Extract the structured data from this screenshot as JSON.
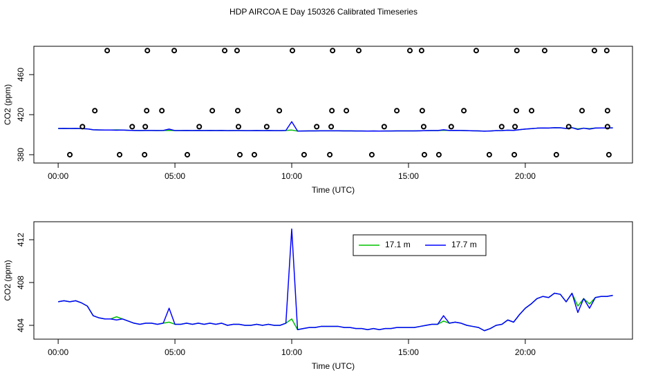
{
  "title": "HDP AIRCOA E  Day 150326  Calibrated Timeseries",
  "chart_data": [
    {
      "type": "line",
      "xlabel": "Time (UTC)",
      "ylabel": "CO2 (ppm)",
      "xlim": [
        -1.04,
        24.59
      ],
      "xticks": [
        {
          "value": 0,
          "label": "00:00"
        },
        {
          "value": 5,
          "label": "05:00"
        },
        {
          "value": 10,
          "label": "10:00"
        },
        {
          "value": 15,
          "label": "15:00"
        },
        {
          "value": 20,
          "label": "20:00"
        }
      ],
      "ylim": [
        371.7,
        488.3
      ],
      "yticks": [
        380,
        420,
        460
      ],
      "series": [
        {
          "color": "#00c000",
          "style": "line",
          "x": [
            0,
            0.25,
            0.5,
            0.75,
            1,
            1.25,
            1.5,
            1.75,
            2,
            2.25,
            2.5,
            2.75,
            3,
            3.25,
            3.5,
            3.75,
            4,
            4.25,
            4.5,
            4.75,
            5,
            5.25,
            5.5,
            5.75,
            6,
            6.25,
            6.5,
            6.75,
            7,
            7.25,
            7.5,
            7.75,
            8,
            8.25,
            8.5,
            8.75,
            9,
            9.25,
            9.5,
            9.75,
            10,
            10.25,
            10.5,
            10.75,
            11,
            11.25,
            11.5,
            11.75,
            12,
            12.25,
            12.5,
            12.75,
            13,
            13.25,
            13.5,
            13.75,
            14,
            14.25,
            14.5,
            14.75,
            15,
            15.25,
            15.5,
            15.75,
            16,
            16.25,
            16.5,
            16.75,
            17,
            17.25,
            17.5,
            17.75,
            18,
            18.25,
            18.5,
            18.75,
            19,
            19.25,
            19.5,
            19.75,
            20,
            20.25,
            20.5,
            20.75,
            21,
            21.25,
            21.5,
            21.75,
            22,
            22.25,
            22.5,
            22.75,
            23,
            23.25,
            23.5,
            23.75
          ],
          "values": [
            406.2,
            406.3,
            406.2,
            406.3,
            406.1,
            405.8,
            404.9,
            404.7,
            404.6,
            404.6,
            404.8,
            404.6,
            404.4,
            404.2,
            404.1,
            404.2,
            404.2,
            404.1,
            404.2,
            404.3,
            404.1,
            404.1,
            404.2,
            404.1,
            404.2,
            404.1,
            404.2,
            404.1,
            404.2,
            404.0,
            404.1,
            404.1,
            404.0,
            404.0,
            404.1,
            404.0,
            404.1,
            404.0,
            404.0,
            404.2,
            404.6,
            403.6,
            403.7,
            403.8,
            403.8,
            403.9,
            403.9,
            403.9,
            403.9,
            403.8,
            403.8,
            403.7,
            403.7,
            403.6,
            403.7,
            403.6,
            403.7,
            403.7,
            403.8,
            403.8,
            403.8,
            403.8,
            403.9,
            404.0,
            404.1,
            404.1,
            404.4,
            404.2,
            404.3,
            404.2,
            404.0,
            403.9,
            403.8,
            403.5,
            403.7,
            404.0,
            404.1,
            404.5,
            404.3,
            405.0,
            405.6,
            406.0,
            406.5,
            406.7,
            406.6,
            407.0,
            406.9,
            406.2,
            407.0,
            405.8,
            406.5,
            406.0,
            406.6,
            406.7,
            406.7,
            406.8
          ]
        },
        {
          "color": "#0000ff",
          "style": "line",
          "x": [
            0,
            0.25,
            0.5,
            0.75,
            1,
            1.25,
            1.5,
            1.75,
            2,
            2.25,
            2.5,
            2.75,
            3,
            3.25,
            3.5,
            3.75,
            4,
            4.25,
            4.5,
            4.75,
            5,
            5.25,
            5.5,
            5.75,
            6,
            6.25,
            6.5,
            6.75,
            7,
            7.25,
            7.5,
            7.75,
            8,
            8.25,
            8.5,
            8.75,
            9,
            9.25,
            9.5,
            9.75,
            10,
            10.25,
            10.5,
            10.75,
            11,
            11.25,
            11.5,
            11.75,
            12,
            12.25,
            12.5,
            12.75,
            13,
            13.25,
            13.5,
            13.75,
            14,
            14.25,
            14.5,
            14.75,
            15,
            15.25,
            15.5,
            15.75,
            16,
            16.25,
            16.5,
            16.75,
            17,
            17.25,
            17.5,
            17.75,
            18,
            18.25,
            18.5,
            18.75,
            19,
            19.25,
            19.5,
            19.75,
            20,
            20.25,
            20.5,
            20.75,
            21,
            21.25,
            21.5,
            21.75,
            22,
            22.25,
            22.5,
            22.75,
            23,
            23.25,
            23.5,
            23.75
          ],
          "values": [
            406.2,
            406.3,
            406.2,
            406.3,
            406.1,
            405.8,
            404.9,
            404.7,
            404.6,
            404.6,
            404.5,
            404.6,
            404.4,
            404.2,
            404.1,
            404.2,
            404.2,
            404.1,
            404.2,
            405.6,
            404.1,
            404.1,
            404.2,
            404.1,
            404.2,
            404.1,
            404.2,
            404.1,
            404.2,
            404.0,
            404.1,
            404.1,
            404.0,
            404.0,
            404.1,
            404.0,
            404.1,
            404.0,
            404.0,
            404.2,
            413.0,
            403.6,
            403.7,
            403.8,
            403.8,
            403.9,
            403.9,
            403.9,
            403.9,
            403.8,
            403.8,
            403.7,
            403.7,
            403.6,
            403.7,
            403.6,
            403.7,
            403.7,
            403.8,
            403.8,
            403.8,
            403.8,
            403.9,
            404.0,
            404.1,
            404.1,
            404.9,
            404.2,
            404.3,
            404.2,
            404.0,
            403.9,
            403.8,
            403.5,
            403.7,
            404.0,
            404.1,
            404.5,
            404.3,
            405.0,
            405.6,
            406.0,
            406.5,
            406.7,
            406.6,
            407.0,
            406.9,
            406.2,
            407.0,
            405.2,
            406.5,
            405.6,
            406.6,
            406.7,
            406.7,
            406.8
          ]
        },
        {
          "color": "#000000",
          "style": "points",
          "x": [
            2.1,
            3.82,
            4.97,
            7.13,
            7.66,
            10.03,
            11.75,
            12.87,
            15.06,
            15.56,
            17.9,
            19.64,
            20.83,
            22.96,
            23.49,
            1.57,
            3.79,
            4.44,
            6.6,
            7.69,
            9.47,
            11.72,
            12.34,
            14.5,
            15.59,
            17.37,
            19.62,
            20.27,
            22.43,
            23.52,
            1.04,
            3.17,
            3.73,
            6.04,
            7.72,
            8.93,
            11.07,
            11.69,
            13.96,
            15.65,
            16.83,
            18.99,
            19.56,
            21.86,
            23.52,
            0.5,
            2.63,
            3.7,
            5.53,
            7.78,
            8.4,
            10.53,
            11.63,
            13.43,
            15.68,
            16.3,
            18.46,
            19.53,
            21.33,
            23.58
          ],
          "values": [
            484,
            484,
            484,
            484,
            484,
            484,
            484,
            484,
            484,
            484,
            484,
            484,
            484,
            484,
            484,
            424,
            424,
            424,
            424,
            424,
            424,
            424,
            424,
            424,
            424,
            424,
            424,
            424,
            424,
            424,
            408,
            408,
            408,
            408,
            408,
            408,
            408,
            408,
            408,
            408,
            408,
            408,
            408,
            408,
            408,
            380,
            380,
            380,
            380,
            380,
            380,
            380,
            380,
            380,
            380,
            380,
            380,
            380,
            380,
            380
          ]
        }
      ]
    },
    {
      "type": "line",
      "xlabel": "Time (UTC)",
      "ylabel": "CO2 (ppm)",
      "xlim": [
        -1.04,
        24.59
      ],
      "xticks": [
        {
          "value": 0,
          "label": "00:00"
        },
        {
          "value": 5,
          "label": "05:00"
        },
        {
          "value": 10,
          "label": "10:00"
        },
        {
          "value": 15,
          "label": "15:00"
        },
        {
          "value": 20,
          "label": "20:00"
        }
      ],
      "ylim": [
        402.71,
        413.68
      ],
      "yticks": [
        404,
        408,
        412
      ],
      "legend": "top",
      "series": [
        {
          "name": "17.1 m",
          "color": "#00c000",
          "style": "line",
          "x": [
            0,
            0.25,
            0.5,
            0.75,
            1,
            1.25,
            1.5,
            1.75,
            2,
            2.25,
            2.5,
            2.75,
            3,
            3.25,
            3.5,
            3.75,
            4,
            4.25,
            4.5,
            4.75,
            5,
            5.25,
            5.5,
            5.75,
            6,
            6.25,
            6.5,
            6.75,
            7,
            7.25,
            7.5,
            7.75,
            8,
            8.25,
            8.5,
            8.75,
            9,
            9.25,
            9.5,
            9.75,
            10,
            10.25,
            10.5,
            10.75,
            11,
            11.25,
            11.5,
            11.75,
            12,
            12.25,
            12.5,
            12.75,
            13,
            13.25,
            13.5,
            13.75,
            14,
            14.25,
            14.5,
            14.75,
            15,
            15.25,
            15.5,
            15.75,
            16,
            16.25,
            16.5,
            16.75,
            17,
            17.25,
            17.5,
            17.75,
            18,
            18.25,
            18.5,
            18.75,
            19,
            19.25,
            19.5,
            19.75,
            20,
            20.25,
            20.5,
            20.75,
            21,
            21.25,
            21.5,
            21.75,
            22,
            22.25,
            22.5,
            22.75,
            23,
            23.25,
            23.5,
            23.75
          ],
          "values": [
            406.2,
            406.3,
            406.2,
            406.3,
            406.1,
            405.8,
            404.9,
            404.7,
            404.6,
            404.6,
            404.8,
            404.6,
            404.4,
            404.2,
            404.1,
            404.2,
            404.2,
            404.1,
            404.2,
            404.3,
            404.1,
            404.1,
            404.2,
            404.1,
            404.2,
            404.1,
            404.2,
            404.1,
            404.2,
            404.0,
            404.1,
            404.1,
            404.0,
            404.0,
            404.1,
            404.0,
            404.1,
            404.0,
            404.0,
            404.2,
            404.6,
            403.6,
            403.7,
            403.8,
            403.8,
            403.9,
            403.9,
            403.9,
            403.9,
            403.8,
            403.8,
            403.7,
            403.7,
            403.6,
            403.7,
            403.6,
            403.7,
            403.7,
            403.8,
            403.8,
            403.8,
            403.8,
            403.9,
            404.0,
            404.1,
            404.1,
            404.4,
            404.2,
            404.3,
            404.2,
            404.0,
            403.9,
            403.8,
            403.5,
            403.7,
            404.0,
            404.1,
            404.5,
            404.3,
            405.0,
            405.6,
            406.0,
            406.5,
            406.7,
            406.6,
            407.0,
            406.9,
            406.2,
            407.0,
            405.8,
            406.5,
            406.0,
            406.6,
            406.7,
            406.7,
            406.8
          ]
        },
        {
          "name": "17.7 m",
          "color": "#0000ff",
          "style": "line",
          "x": [
            0,
            0.25,
            0.5,
            0.75,
            1,
            1.25,
            1.5,
            1.75,
            2,
            2.25,
            2.5,
            2.75,
            3,
            3.25,
            3.5,
            3.75,
            4,
            4.25,
            4.5,
            4.75,
            5,
            5.25,
            5.5,
            5.75,
            6,
            6.25,
            6.5,
            6.75,
            7,
            7.25,
            7.5,
            7.75,
            8,
            8.25,
            8.5,
            8.75,
            9,
            9.25,
            9.5,
            9.75,
            10,
            10.25,
            10.5,
            10.75,
            11,
            11.25,
            11.5,
            11.75,
            12,
            12.25,
            12.5,
            12.75,
            13,
            13.25,
            13.5,
            13.75,
            14,
            14.25,
            14.5,
            14.75,
            15,
            15.25,
            15.5,
            15.75,
            16,
            16.25,
            16.5,
            16.75,
            17,
            17.25,
            17.5,
            17.75,
            18,
            18.25,
            18.5,
            18.75,
            19,
            19.25,
            19.5,
            19.75,
            20,
            20.25,
            20.5,
            20.75,
            21,
            21.25,
            21.5,
            21.75,
            22,
            22.25,
            22.5,
            22.75,
            23,
            23.25,
            23.5,
            23.75
          ],
          "values": [
            406.2,
            406.3,
            406.2,
            406.3,
            406.1,
            405.8,
            404.9,
            404.7,
            404.6,
            404.6,
            404.5,
            404.6,
            404.4,
            404.2,
            404.1,
            404.2,
            404.2,
            404.1,
            404.2,
            405.6,
            404.1,
            404.1,
            404.2,
            404.1,
            404.2,
            404.1,
            404.2,
            404.1,
            404.2,
            404.0,
            404.1,
            404.1,
            404.0,
            404.0,
            404.1,
            404.0,
            404.1,
            404.0,
            404.0,
            404.2,
            413.0,
            403.6,
            403.7,
            403.8,
            403.8,
            403.9,
            403.9,
            403.9,
            403.9,
            403.8,
            403.8,
            403.7,
            403.7,
            403.6,
            403.7,
            403.6,
            403.7,
            403.7,
            403.8,
            403.8,
            403.8,
            403.8,
            403.9,
            404.0,
            404.1,
            404.1,
            404.9,
            404.2,
            404.3,
            404.2,
            404.0,
            403.9,
            403.8,
            403.5,
            403.7,
            404.0,
            404.1,
            404.5,
            404.3,
            405.0,
            405.6,
            406.0,
            406.5,
            406.7,
            406.6,
            407.0,
            406.9,
            406.2,
            407.0,
            405.2,
            406.5,
            405.6,
            406.6,
            406.7,
            406.7,
            406.8
          ]
        }
      ]
    }
  ]
}
